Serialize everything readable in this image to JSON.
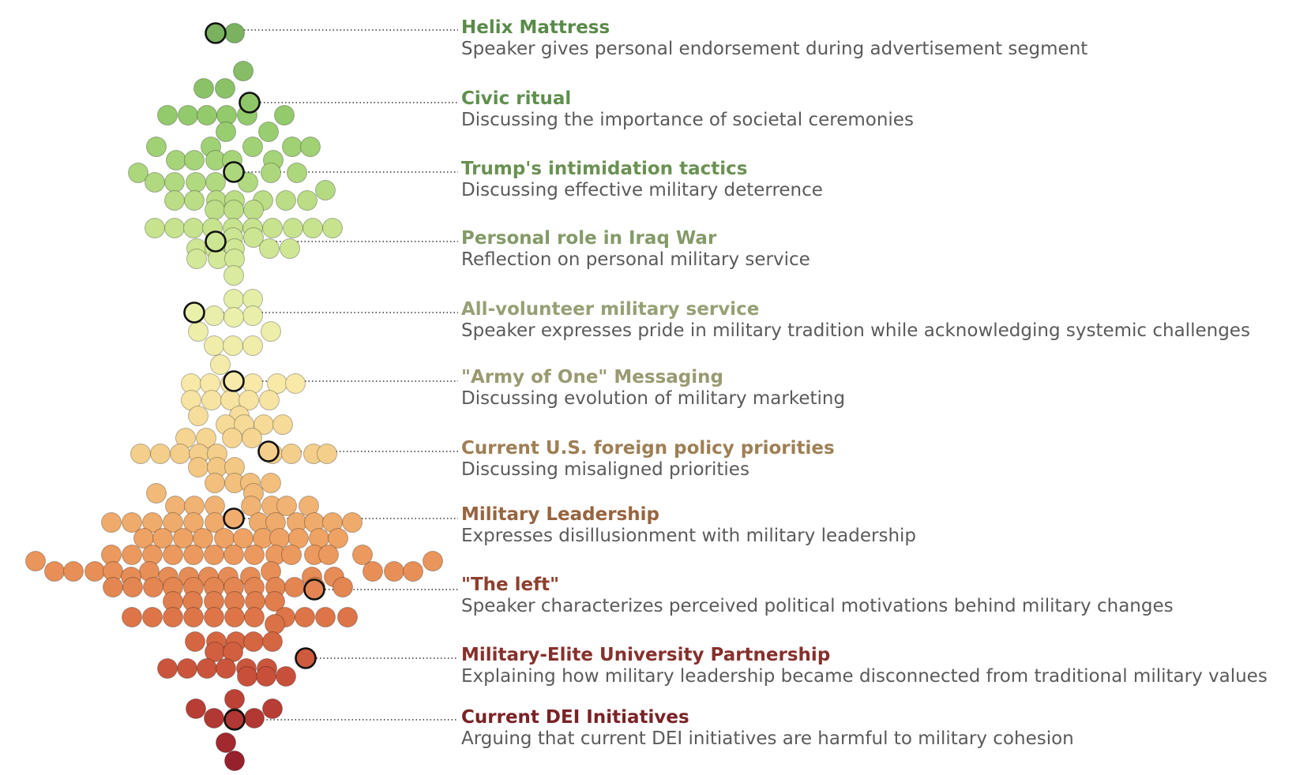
{
  "annotations": [
    {
      "title": "Helix Mattress",
      "description": "Speaker gives personal endorsement during advertisement segment",
      "color": "#5a8a4a"
    },
    {
      "title": "Civic ritual",
      "description": "Discussing the importance of societal ceremonies",
      "color": "#5f8f4e"
    },
    {
      "title": "Trump's intimidation tactics",
      "description": "Discussing effective military deterrence",
      "color": "#6a9152"
    },
    {
      "title": "Personal role in Iraq War",
      "description": "Reflection on personal military service",
      "color": "#849a68"
    },
    {
      "title": "All-volunteer military service",
      "description": "Speaker expresses pride in military tradition while acknowledging systemic challenges",
      "color": "#96a075"
    },
    {
      "title": "\"Army of One\" Messaging",
      "description": "Discussing evolution of military marketing",
      "color": "#9a9a72"
    },
    {
      "title": "Current U.S. foreign policy priorities",
      "description": "Discussing misaligned priorities",
      "color": "#9e7f55"
    },
    {
      "title": "Military Leadership",
      "description": "Expresses disillusionment with military leadership",
      "color": "#97643f"
    },
    {
      "title": "\"The left\"",
      "description": "Speaker characterizes perceived political motivations behind military changes",
      "color": "#8e3f2e"
    },
    {
      "title": "Military-Elite University Partnership",
      "description": "Explaining how military leadership became disconnected from traditional military values",
      "color": "#86302c"
    },
    {
      "title": "Current DEI Initiatives",
      "description": "Arguing that current DEI initiatives are harmful to military cohesion",
      "color": "#7a2226"
    }
  ]
}
